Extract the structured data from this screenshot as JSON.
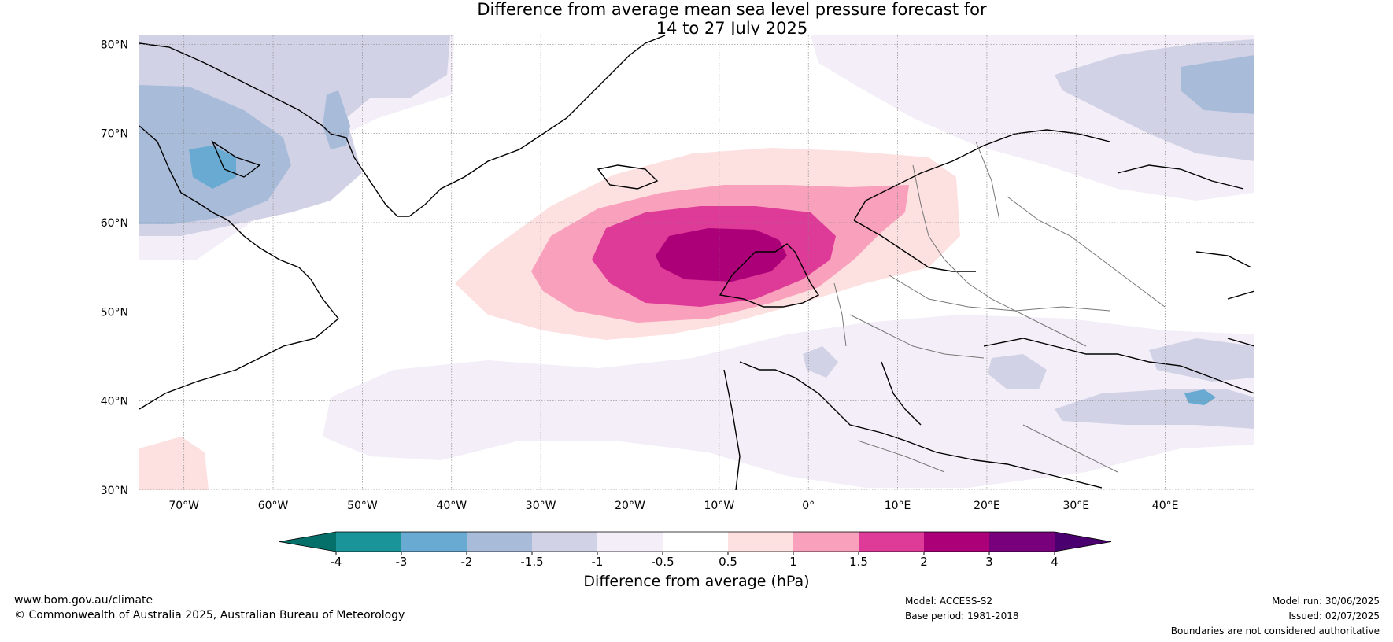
{
  "title": {
    "line1": "Difference from average mean sea level pressure forecast for",
    "line2": "14 to 27 July 2025"
  },
  "map": {
    "lat_labels": [
      "80°N",
      "70°N",
      "60°N",
      "50°N",
      "40°N",
      "30°N"
    ],
    "lon_labels": [
      "70°W",
      "60°W",
      "50°W",
      "40°W",
      "30°W",
      "20°W",
      "10°W",
      "0°",
      "10°E",
      "20°E",
      "30°E",
      "40°E"
    ],
    "lat_values": [
      80,
      70,
      60,
      50,
      40,
      30
    ],
    "lon_values": [
      -70,
      -60,
      -50,
      -40,
      -30,
      -20,
      -10,
      0,
      10,
      20,
      30,
      40
    ],
    "lat_range": [
      30,
      81
    ],
    "lon_range": [
      -75,
      50
    ]
  },
  "colorbar": {
    "label": "Difference from average (hPa)",
    "ticks": [
      "-4",
      "-3",
      "-2",
      "-1.5",
      "-1",
      "-0.5",
      "0.5",
      "1",
      "1.5",
      "2",
      "3",
      "4"
    ],
    "colors": [
      "#05706a",
      "#1a9399",
      "#69aad3",
      "#a8bcda",
      "#d2d2e6",
      "#f3eef7",
      "#ffffff",
      "#fde0e0",
      "#f8a0bc",
      "#de3a97",
      "#ab0078",
      "#78007c",
      "#4a006e"
    ]
  },
  "footer": {
    "website": "www.bom.gov.au/climate",
    "copyright": "© Commonwealth of Australia 2025, Australian Bureau of Meteorology",
    "model": "Model: ACCESS-S2",
    "base_period": "Base period: 1981-2018",
    "model_run": "Model run: 30/06/2025",
    "issued": "Issued: 02/07/2025",
    "disclaimer": "Boundaries are not considered authoritative"
  }
}
